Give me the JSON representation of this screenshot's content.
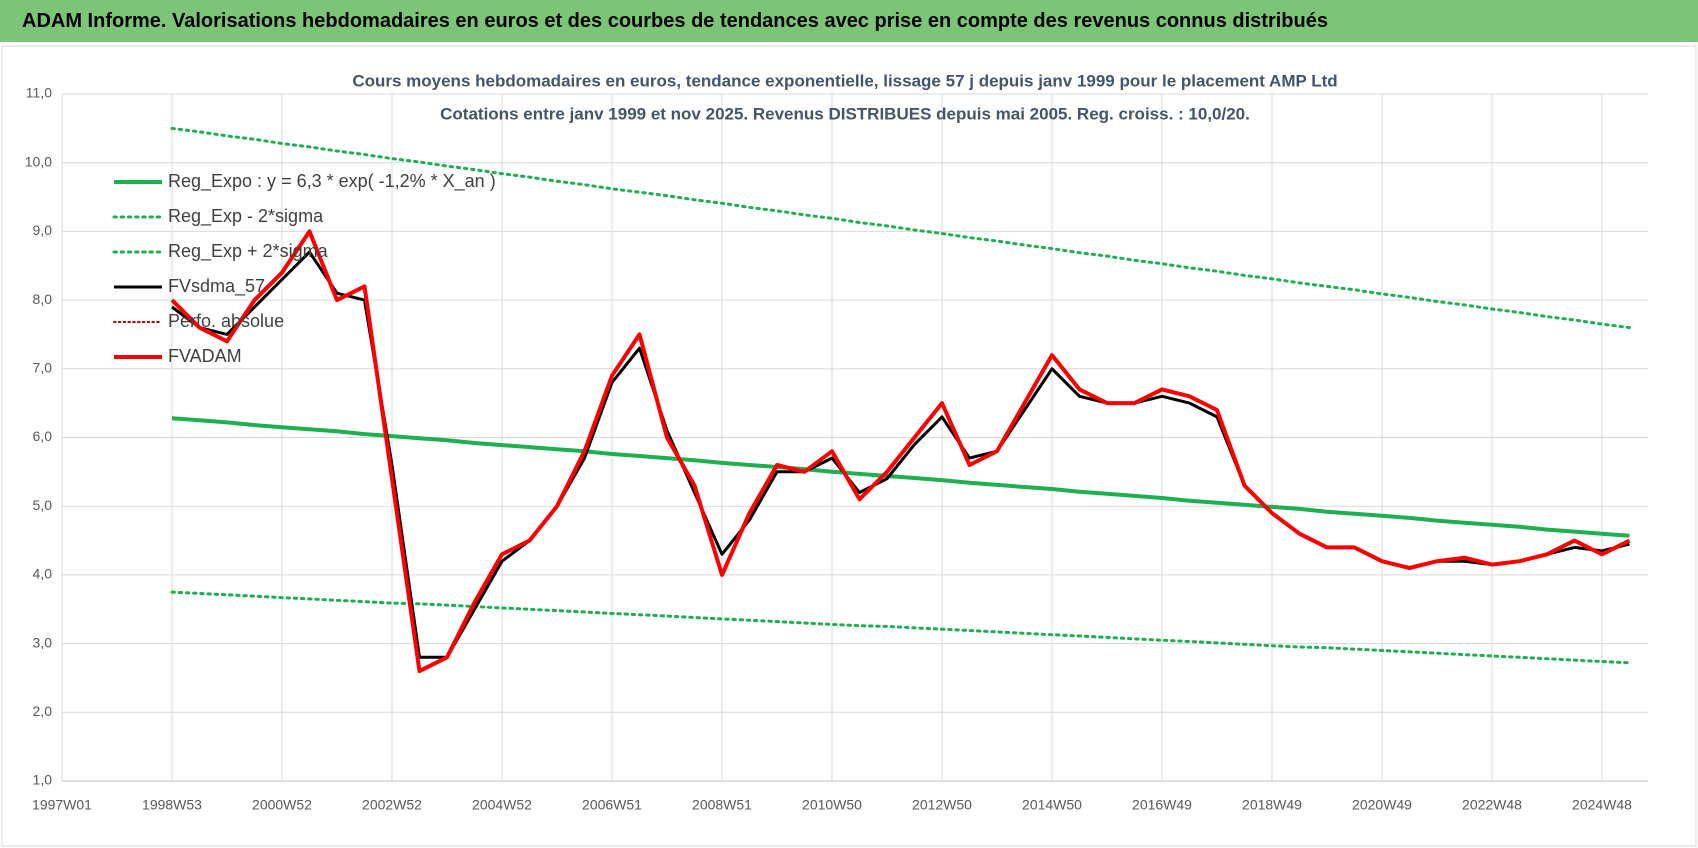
{
  "header": {
    "title": "ADAM Informe. Valorisations hebdomadaires en euros et des courbes de tendances avec prise en compte des revenus connus distribués"
  },
  "chart_data": {
    "type": "line",
    "title": "Cours moyens hebdomadaires en euros, tendance exponentielle, lissage 57 j depuis janv 1999 pour le placement AMP Ltd",
    "subtitle": "Cotations entre janv 1999 et nov 2025. Revenus DISTRIBUES depuis mai 2005. Reg. croiss. : 10,0/20.",
    "categories": [
      "1997W01",
      null,
      null,
      null,
      "1998W53",
      null,
      null,
      null,
      "2000W52",
      null,
      null,
      null,
      "2002W52",
      null,
      null,
      null,
      "2004W52",
      null,
      null,
      null,
      "2006W51",
      null,
      null,
      null,
      "2008W51",
      null,
      null,
      null,
      "2010W50",
      null,
      null,
      null,
      "2012W50",
      null,
      null,
      null,
      "2014W50",
      null,
      null,
      null,
      "2016W49",
      null,
      null,
      null,
      "2018W49",
      null,
      null,
      null,
      "2020W49",
      null,
      null,
      null,
      "2022W48",
      null,
      null,
      null,
      "2024W48",
      null
    ],
    "ylim": [
      1,
      11
    ],
    "yticks": [
      {
        "value": 1,
        "label": "1,0"
      },
      {
        "value": 2,
        "label": "2,0"
      },
      {
        "value": 3,
        "label": "3,0"
      },
      {
        "value": 4,
        "label": "4,0"
      },
      {
        "value": 5,
        "label": "5,0"
      },
      {
        "value": 6,
        "label": "6,0"
      },
      {
        "value": 7,
        "label": "7,0"
      },
      {
        "value": 8,
        "label": "8,0"
      },
      {
        "value": 9,
        "label": "9,0"
      },
      {
        "value": 10,
        "label": "10,0"
      },
      {
        "value": 11,
        "label": "11,0"
      }
    ],
    "grid": true,
    "legend": "upper left",
    "series": [
      {
        "name": "Reg_Expo : y = 6,3 * exp( -1,2% * X_an )",
        "color": "#1eb050",
        "style": "solid",
        "width": 4,
        "values": [
          null,
          null,
          null,
          null,
          6.28,
          6.25,
          6.22,
          6.18,
          6.15,
          6.12,
          6.09,
          6.05,
          6.02,
          5.99,
          5.96,
          5.92,
          5.89,
          5.86,
          5.83,
          5.8,
          5.76,
          5.73,
          5.7,
          5.67,
          5.63,
          5.6,
          5.57,
          5.54,
          5.5,
          5.47,
          5.44,
          5.41,
          5.38,
          5.34,
          5.31,
          5.28,
          5.25,
          5.21,
          5.18,
          5.15,
          5.12,
          5.08,
          5.05,
          5.02,
          4.99,
          4.96,
          4.92,
          4.89,
          4.86,
          4.83,
          4.79,
          4.76,
          4.73,
          4.7,
          4.66,
          4.63,
          4.6,
          4.57
        ]
      },
      {
        "name": "Reg_Exp - 2*sigma",
        "color": "#1eb050",
        "style": "dotted",
        "width": 3,
        "values": [
          null,
          null,
          null,
          null,
          3.75,
          3.73,
          3.71,
          3.69,
          3.67,
          3.65,
          3.63,
          3.61,
          3.59,
          3.58,
          3.56,
          3.54,
          3.52,
          3.5,
          3.48,
          3.46,
          3.44,
          3.42,
          3.4,
          3.38,
          3.36,
          3.34,
          3.32,
          3.3,
          3.28,
          3.26,
          3.25,
          3.23,
          3.21,
          3.19,
          3.17,
          3.15,
          3.13,
          3.11,
          3.09,
          3.07,
          3.05,
          3.03,
          3.01,
          2.99,
          2.97,
          2.95,
          2.94,
          2.92,
          2.9,
          2.88,
          2.86,
          2.84,
          2.82,
          2.8,
          2.78,
          2.76,
          2.74,
          2.72
        ]
      },
      {
        "name": "Reg_Exp + 2*sigma",
        "color": "#1eb050",
        "style": "dotted",
        "width": 3,
        "values": [
          null,
          null,
          null,
          null,
          10.5,
          10.45,
          10.39,
          10.34,
          10.28,
          10.23,
          10.17,
          10.12,
          10.06,
          10.01,
          9.95,
          9.9,
          9.84,
          9.79,
          9.73,
          9.68,
          9.62,
          9.57,
          9.52,
          9.46,
          9.41,
          9.35,
          9.3,
          9.24,
          9.19,
          9.13,
          9.08,
          9.02,
          8.97,
          8.91,
          8.86,
          8.8,
          8.75,
          8.69,
          8.64,
          8.58,
          8.53,
          8.47,
          8.42,
          8.36,
          8.31,
          8.25,
          8.2,
          8.15,
          8.09,
          8.04,
          7.98,
          7.93,
          7.87,
          7.82,
          7.76,
          7.71,
          7.65,
          7.6
        ]
      },
      {
        "name": "FVsdma_57",
        "color": "#000000",
        "style": "solid",
        "width": 3,
        "values": [
          null,
          null,
          null,
          null,
          7.9,
          7.6,
          7.5,
          7.9,
          8.3,
          8.7,
          8.1,
          8.0,
          5.6,
          2.8,
          2.8,
          3.5,
          4.2,
          4.5,
          5.0,
          5.7,
          6.8,
          7.3,
          6.1,
          5.2,
          4.3,
          4.8,
          5.5,
          5.5,
          5.7,
          5.2,
          5.4,
          5.9,
          6.3,
          5.7,
          5.8,
          6.4,
          7.0,
          6.6,
          6.5,
          6.5,
          6.6,
          6.5,
          6.3,
          5.3,
          4.9,
          4.6,
          4.4,
          4.4,
          4.2,
          4.1,
          4.2,
          4.2,
          4.15,
          4.2,
          4.3,
          4.4,
          4.35,
          4.45
        ]
      },
      {
        "name": "Perfo. absolue",
        "color": "#c00000",
        "style": "dotted",
        "width": 2,
        "values": [
          null,
          null,
          null,
          null,
          null,
          null,
          null,
          null,
          null,
          null,
          null,
          null,
          null,
          null,
          null,
          null,
          null,
          null,
          null,
          null,
          null,
          null,
          null,
          null,
          null,
          null,
          null,
          null,
          null,
          null,
          null,
          null,
          null,
          null,
          null,
          null,
          null,
          null,
          null,
          null,
          null,
          null,
          null,
          null,
          null,
          null,
          null,
          null,
          null,
          null,
          null,
          null,
          null,
          null,
          null,
          null,
          null,
          null
        ]
      },
      {
        "name": "FVADAM",
        "color": "#ff0000",
        "style": "solid",
        "width": 4,
        "values": [
          null,
          null,
          null,
          null,
          8.0,
          7.6,
          7.4,
          8.0,
          8.4,
          9.0,
          8.0,
          8.2,
          5.4,
          2.6,
          2.8,
          3.6,
          4.3,
          4.5,
          5.0,
          5.8,
          6.9,
          7.5,
          6.0,
          5.3,
          4.0,
          4.9,
          5.6,
          5.5,
          5.8,
          5.1,
          5.5,
          6.0,
          6.5,
          5.6,
          5.8,
          6.5,
          7.2,
          6.7,
          6.5,
          6.5,
          6.7,
          6.6,
          6.4,
          5.3,
          4.9,
          4.6,
          4.4,
          4.4,
          4.2,
          4.1,
          4.2,
          4.25,
          4.15,
          4.2,
          4.3,
          4.5,
          4.3,
          4.5
        ]
      }
    ]
  }
}
